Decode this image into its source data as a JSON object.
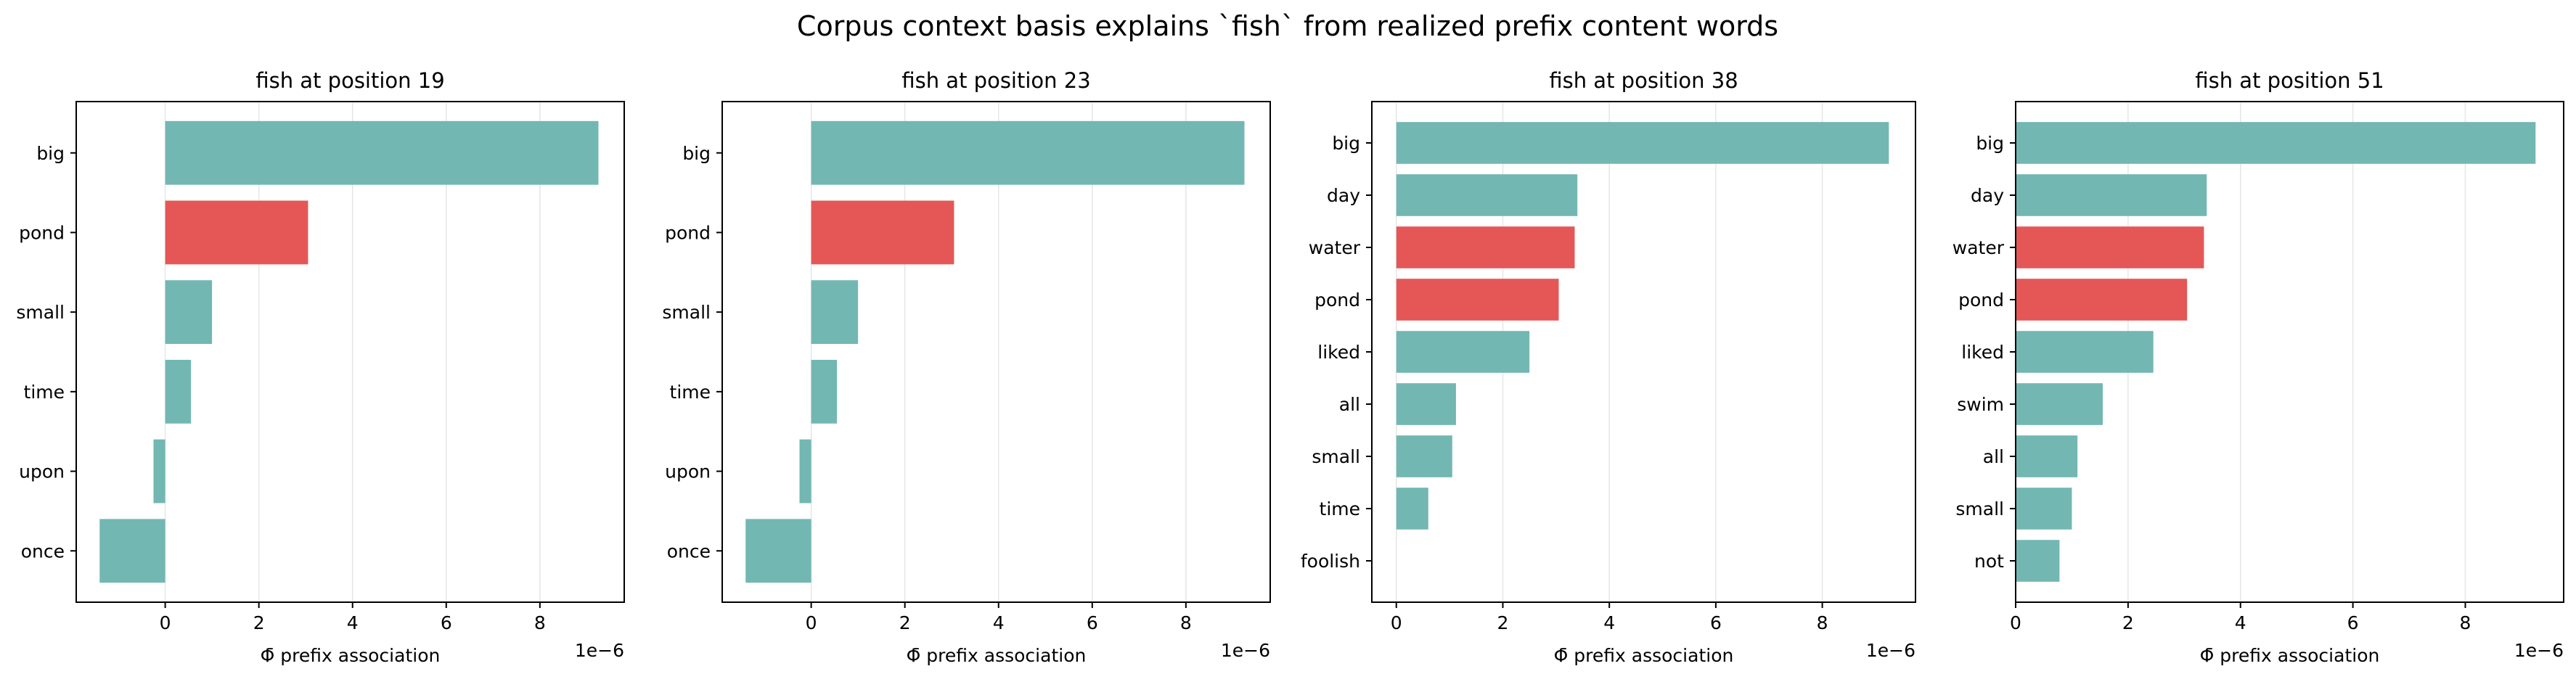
{
  "figure_title": "Corpus context basis explains `fish` from realized prefix content words",
  "colors": {
    "default_bar": "#72b7b2",
    "highlight_bar": "#e45756",
    "grid": "#e6e6e6"
  },
  "chart_data": [
    {
      "type": "bar",
      "orientation": "horizontal",
      "title": "fish at position 19",
      "xlabel": "Φ̄ prefix association",
      "ylabel": "",
      "offset_text": "1e−6",
      "xlim": [
        -1.9,
        9.8
      ],
      "xticks": [
        0,
        2,
        4,
        6,
        8
      ],
      "grid": "x",
      "categories": [
        "big",
        "pond",
        "small",
        "time",
        "upon",
        "once"
      ],
      "values": [
        9.25,
        3.05,
        1.0,
        0.55,
        -0.25,
        -1.4
      ],
      "highlighted": [
        false,
        true,
        false,
        false,
        false,
        false
      ]
    },
    {
      "type": "bar",
      "orientation": "horizontal",
      "title": "fish at position 23",
      "xlabel": "Φ̄ prefix association",
      "ylabel": "",
      "offset_text": "1e−6",
      "xlim": [
        -1.9,
        9.8
      ],
      "xticks": [
        0,
        2,
        4,
        6,
        8
      ],
      "grid": "x",
      "categories": [
        "big",
        "pond",
        "small",
        "time",
        "upon",
        "once"
      ],
      "values": [
        9.25,
        3.05,
        1.0,
        0.55,
        -0.25,
        -1.4
      ],
      "highlighted": [
        false,
        true,
        false,
        false,
        false,
        false
      ]
    },
    {
      "type": "bar",
      "orientation": "horizontal",
      "title": "fish at position 38",
      "xlabel": "Φ̄ prefix association",
      "ylabel": "",
      "offset_text": "1e−6",
      "xlim": [
        -0.46,
        9.75
      ],
      "xticks": [
        0,
        2,
        4,
        6,
        8
      ],
      "grid": "x",
      "categories": [
        "big",
        "day",
        "water",
        "pond",
        "liked",
        "all",
        "small",
        "time",
        "foolish"
      ],
      "values": [
        9.25,
        3.4,
        3.35,
        3.05,
        2.5,
        1.12,
        1.05,
        0.6,
        0
      ],
      "highlighted": [
        false,
        false,
        true,
        true,
        false,
        false,
        false,
        false,
        false
      ]
    },
    {
      "type": "bar",
      "orientation": "horizontal",
      "title": "fish at position 51",
      "xlabel": "Φ̄ prefix association",
      "ylabel": "",
      "offset_text": "1e−6",
      "xlim": [
        0,
        9.75
      ],
      "xticks": [
        0,
        2,
        4,
        6,
        8
      ],
      "grid": "x",
      "categories": [
        "big",
        "day",
        "water",
        "pond",
        "liked",
        "swim",
        "all",
        "small",
        "not"
      ],
      "values": [
        9.25,
        3.4,
        3.35,
        3.05,
        2.45,
        1.55,
        1.1,
        1.0,
        0.78
      ],
      "highlighted": [
        false,
        false,
        true,
        true,
        false,
        false,
        false,
        false,
        false
      ]
    }
  ]
}
